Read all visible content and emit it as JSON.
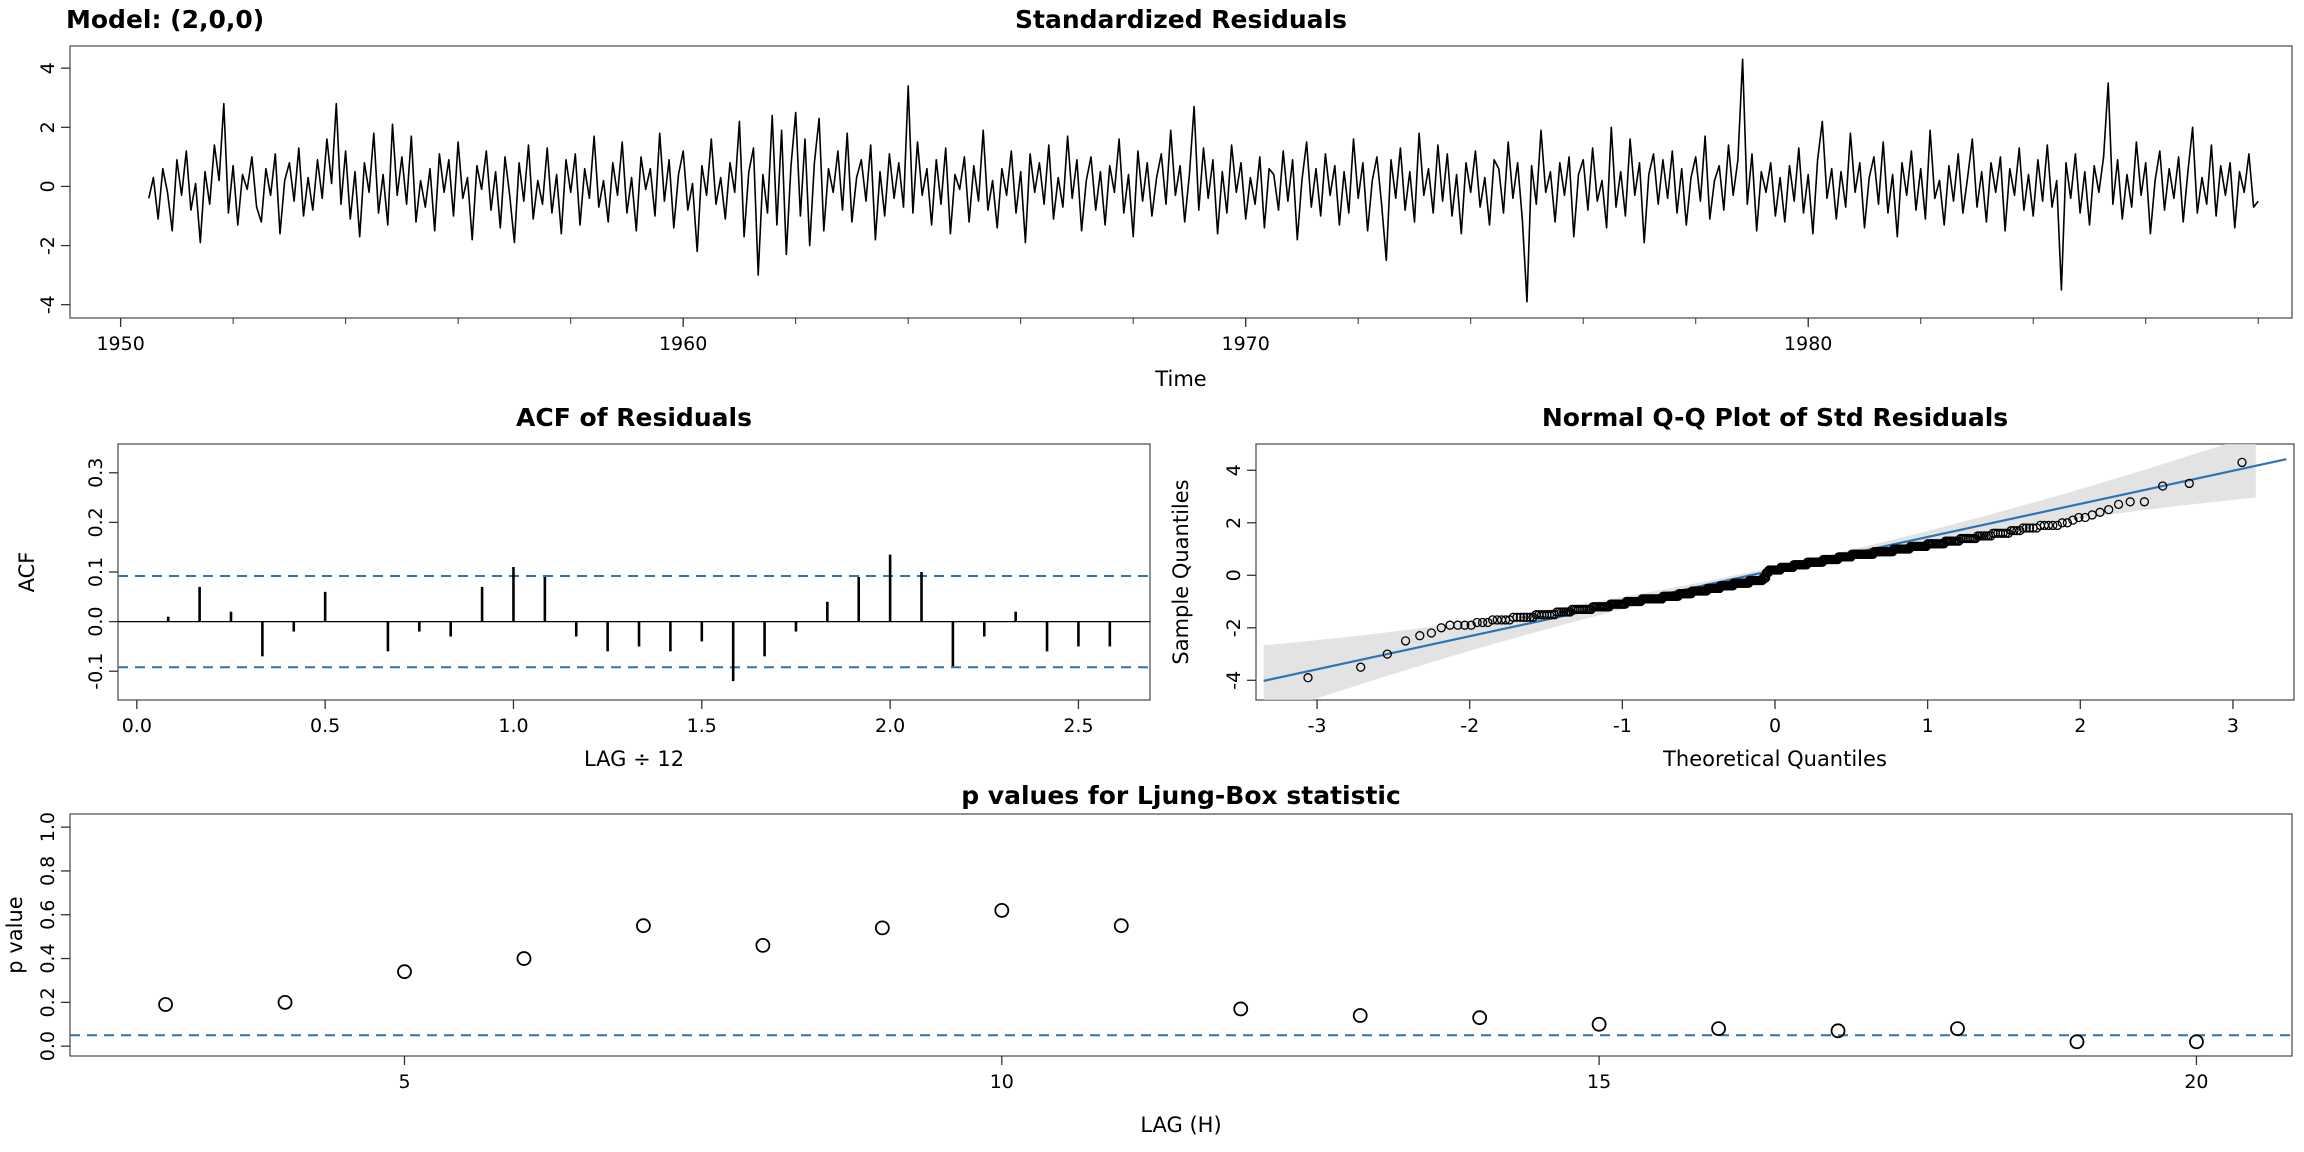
{
  "figure": {
    "bg": "#ffffff",
    "accent_blue": "#2e74b5",
    "band_gray": "#d9d9d9",
    "frame_gray": "#555555"
  },
  "panels": {
    "residuals": {
      "title": "Standardized Residuals",
      "model_label": "Model: (2,0,0)",
      "xlabel": "Time",
      "xlim": [
        1949.1,
        1988.6
      ],
      "ylim": [
        -4.45,
        4.75
      ],
      "x_ticks": [
        1950,
        1960,
        1970,
        1980
      ],
      "x_tick_labels": [
        "1950",
        "1960",
        "1970",
        "1980"
      ],
      "x_minor": [
        1950,
        1988,
        2
      ],
      "y_ticks": [
        -4,
        -2,
        0,
        2,
        4
      ],
      "y_tick_labels": [
        "-4",
        "-2",
        "0",
        "2",
        "4"
      ]
    },
    "acf": {
      "title": "ACF of Residuals",
      "xlabel": "LAG ÷ 12",
      "ylabel": "ACF",
      "xlim": [
        -0.05,
        2.69
      ],
      "ylim": [
        -0.158,
        0.358
      ],
      "x_ticks": [
        0,
        0.5,
        1,
        1.5,
        2,
        2.5
      ],
      "x_tick_labels": [
        "0.0",
        "0.5",
        "1.0",
        "1.5",
        "2.0",
        "2.5"
      ],
      "y_ticks": [
        -0.1,
        0,
        0.1,
        0.2,
        0.3
      ],
      "y_tick_labels": [
        "-0.1",
        "0.0",
        "0.1",
        "0.2",
        "0.3"
      ]
    },
    "qq": {
      "title": "Normal Q-Q Plot of Std Residuals",
      "xlabel": "Theoretical Quantiles",
      "ylabel": "Sample Quantiles",
      "xlim": [
        -3.4,
        3.4
      ],
      "ylim": [
        -4.75,
        5.0
      ],
      "x_ticks": [
        -3,
        -2,
        -1,
        0,
        1,
        2,
        3
      ],
      "x_tick_labels": [
        "-3",
        "-2",
        "-1",
        "0",
        "1",
        "2",
        "3"
      ],
      "y_ticks": [
        -4,
        -2,
        0,
        2,
        4
      ],
      "y_tick_labels": [
        "-4",
        "-2",
        "0",
        "2",
        "4"
      ]
    },
    "ljung_box": {
      "title": "p values for Ljung-Box statistic",
      "xlabel": "LAG (H)",
      "ylabel": "p value",
      "xlim": [
        2.2,
        20.8
      ],
      "ylim": [
        -0.045,
        1.06
      ],
      "x_ticks": [
        5,
        10,
        15,
        20
      ],
      "x_tick_labels": [
        "5",
        "10",
        "15",
        "20"
      ],
      "y_ticks": [
        0,
        0.2,
        0.4,
        0.6,
        0.8,
        1
      ],
      "y_tick_labels": [
        "0.0",
        "0.2",
        "0.4",
        "0.6",
        "0.8",
        "1.0"
      ]
    }
  },
  "chart_data": [
    {
      "id": "standardized_residuals",
      "type": "line",
      "title": "Standardized Residuals",
      "xlabel": "Time",
      "x_start": 1950.5,
      "x_step_years": 0.0833333,
      "xlim": [
        1949.1,
        1988.6
      ],
      "ylim": [
        -4.45,
        4.75
      ],
      "notable_extremes": {
        "max": [
          1978.83,
          4.3
        ],
        "min": [
          1975.0,
          -3.9
        ]
      },
      "values": [
        -0.4,
        0.3,
        -1.1,
        0.6,
        -0.2,
        -1.5,
        0.9,
        -0.3,
        1.2,
        -0.8,
        0.1,
        -1.9,
        0.5,
        -0.6,
        1.4,
        0.2,
        2.8,
        -0.9,
        0.7,
        -1.3,
        0.4,
        -0.1,
        1.0,
        -0.7,
        -1.2,
        0.6,
        -0.3,
        1.1,
        -1.6,
        0.2,
        0.8,
        -0.5,
        1.3,
        -1.0,
        0.3,
        -0.8,
        0.9,
        -0.4,
        1.6,
        0.1,
        2.8,
        -0.6,
        1.2,
        -1.1,
        0.5,
        -1.7,
        0.8,
        -0.2,
        1.8,
        -0.9,
        0.4,
        -1.3,
        2.1,
        -0.3,
        1.0,
        -0.6,
        1.7,
        -1.2,
        0.2,
        -0.7,
        0.6,
        -1.5,
        1.1,
        -0.2,
        0.9,
        -1.0,
        1.5,
        -0.4,
        0.3,
        -1.8,
        0.7,
        -0.1,
        1.2,
        -0.8,
        0.5,
        -1.4,
        1.0,
        -0.3,
        -1.9,
        0.8,
        -0.5,
        1.4,
        -1.1,
        0.2,
        -0.6,
        1.3,
        -0.9,
        0.4,
        -1.6,
        0.9,
        -0.2,
        1.1,
        -1.3,
        0.6,
        -0.4,
        1.7,
        -0.7,
        0.2,
        -1.2,
        0.8,
        -0.3,
        1.5,
        -0.9,
        0.3,
        -1.5,
        1.0,
        -0.1,
        0.6,
        -1.0,
        1.8,
        -0.5,
        0.9,
        -1.4,
        0.4,
        1.2,
        -0.8,
        0.1,
        -2.2,
        0.7,
        -0.3,
        1.6,
        -0.6,
        0.3,
        -1.1,
        0.8,
        -0.2,
        2.2,
        -1.7,
        0.5,
        1.3,
        -3.0,
        0.4,
        -0.9,
        2.4,
        -1.3,
        1.9,
        -2.3,
        0.7,
        2.5,
        -1.0,
        1.6,
        -2.0,
        0.8,
        2.3,
        -1.5,
        0.6,
        -0.2,
        1.2,
        -0.8,
        1.8,
        -1.2,
        0.3,
        0.9,
        -0.5,
        1.4,
        -1.8,
        0.5,
        -1.0,
        1.1,
        -0.4,
        0.8,
        -0.7,
        3.4,
        -0.9,
        1.5,
        -0.3,
        0.6,
        -1.3,
        0.9,
        -0.6,
        1.3,
        -1.6,
        0.4,
        -0.1,
        1.0,
        -1.2,
        0.7,
        -0.5,
        1.9,
        -0.8,
        0.2,
        -1.4,
        0.6,
        -0.3,
        1.2,
        -0.9,
        0.5,
        -1.9,
        1.1,
        -0.2,
        0.8,
        -0.6,
        1.4,
        -1.1,
        0.3,
        -0.7,
        1.7,
        -0.4,
        0.9,
        -1.5,
        0.2,
        1.0,
        -0.8,
        0.5,
        -1.3,
        0.7,
        -0.2,
        1.6,
        -0.9,
        0.4,
        -1.7,
        1.2,
        -0.5,
        0.8,
        -1.0,
        0.3,
        1.1,
        -0.6,
        1.9,
        -0.3,
        0.7,
        -1.2,
        0.4,
        2.7,
        -0.8,
        1.3,
        -0.4,
        0.9,
        -1.6,
        0.5,
        -0.9,
        1.4,
        -0.2,
        0.8,
        -1.1,
        0.3,
        -0.6,
        1.0,
        -1.4,
        0.6,
        0.4,
        -0.8,
        1.2,
        -0.5,
        0.9,
        -1.8,
        0.2,
        1.5,
        -0.7,
        0.6,
        -1.0,
        1.1,
        -0.3,
        0.7,
        -1.3,
        0.5,
        -0.9,
        1.6,
        -0.4,
        0.8,
        -1.5,
        0.2,
        1.0,
        -0.6,
        -2.5,
        0.9,
        -0.4,
        1.3,
        -0.8,
        0.5,
        -1.2,
        1.8,
        -0.3,
        0.6,
        -0.9,
        1.4,
        -0.5,
        1.1,
        -1.0,
        0.4,
        -1.6,
        0.8,
        -0.2,
        1.2,
        -0.7,
        0.3,
        -1.3,
        0.9,
        0.6,
        -0.9,
        1.5,
        -0.4,
        0.8,
        -1.1,
        -3.9,
        0.7,
        -0.6,
        1.9,
        -0.2,
        0.5,
        -1.2,
        0.8,
        -0.3,
        1.0,
        -1.7,
        0.4,
        0.9,
        -0.8,
        1.3,
        -0.5,
        0.2,
        -1.4,
        2.0,
        -0.7,
        0.5,
        -1.0,
        1.6,
        -0.3,
        0.8,
        -1.9,
        0.4,
        1.1,
        -0.6,
        0.9,
        -0.4,
        1.2,
        -0.9,
        0.6,
        -1.3,
        0.3,
        1.0,
        -0.5,
        1.7,
        -1.1,
        0.2,
        0.7,
        -0.8,
        1.4,
        -0.3,
        0.9,
        4.3,
        -0.6,
        1.1,
        -1.5,
        0.5,
        -0.2,
        0.8,
        -1.0,
        0.3,
        -1.2,
        0.7,
        -0.5,
        1.3,
        -0.9,
        0.4,
        -1.6,
        0.9,
        2.2,
        -0.4,
        0.6,
        -1.1,
        0.5,
        -0.7,
        1.8,
        -0.2,
        0.8,
        -1.4,
        0.3,
        1.0,
        -0.6,
        1.5,
        -0.9,
        0.4,
        -1.7,
        0.8,
        -0.3,
        1.2,
        -0.8,
        0.6,
        -1.1,
        1.9,
        -0.4,
        0.2,
        -1.3,
        0.7,
        -0.5,
        1.1,
        -0.9,
        0.3,
        1.6,
        -0.7,
        0.5,
        -1.2,
        0.8,
        -0.2,
        1.0,
        -1.5,
        0.6,
        -0.3,
        1.3,
        -0.8,
        0.4,
        -1.0,
        0.9,
        -0.5,
        1.4,
        -0.7,
        0.2,
        -3.5,
        0.8,
        -0.4,
        1.1,
        -0.9,
        0.5,
        -1.3,
        0.7,
        -0.2,
        1.0,
        3.5,
        -0.6,
        0.9,
        -1.1,
        0.4,
        -0.7,
        1.5,
        -0.3,
        0.8,
        -1.6,
        0.2,
        1.2,
        -0.8,
        0.6,
        -0.4,
        1.0,
        -1.2,
        0.5,
        2.0,
        -0.9,
        0.3,
        -0.6,
        1.4,
        -1.0,
        0.7,
        -0.3,
        0.8,
        -1.4,
        0.5,
        -0.2,
        1.1,
        -0.7,
        -0.5
      ]
    },
    {
      "id": "acf_of_residuals",
      "type": "bar",
      "title": "ACF of Residuals",
      "xlabel": "LAG ÷ 12",
      "ylabel": "ACF",
      "lag_divisor": 12,
      "conf_bound": 0.092,
      "conf_style": "dashed-blue",
      "lags": [
        1,
        2,
        3,
        4,
        5,
        6,
        7,
        8,
        9,
        10,
        11,
        12,
        13,
        14,
        15,
        16,
        17,
        18,
        19,
        20,
        21,
        22,
        23,
        24,
        25,
        26,
        27,
        28,
        29,
        30,
        31
      ],
      "values": [
        0.01,
        0.07,
        0.02,
        -0.07,
        -0.02,
        0.06,
        0.0,
        -0.06,
        -0.02,
        -0.03,
        0.07,
        0.11,
        0.09,
        -0.03,
        -0.06,
        -0.05,
        -0.06,
        -0.04,
        -0.12,
        -0.07,
        -0.02,
        0.04,
        0.09,
        0.135,
        0.1,
        -0.09,
        -0.03,
        0.02,
        -0.06,
        -0.05,
        -0.05
      ]
    },
    {
      "id": "normal_qq",
      "type": "scatter",
      "title": "Normal Q-Q Plot of Std Residuals",
      "xlabel": "Theoretical Quantiles",
      "ylabel": "Sample Quantiles",
      "points": "sorted standardized residuals (chart_data[0].values) vs standard normal quantiles",
      "reference_line": "blue line through data quartiles",
      "band": {
        "base": 0.12,
        "quad": 0.11
      },
      "xlim": [
        -3.4,
        3.4
      ],
      "ylim": [
        -4.75,
        5.0
      ]
    },
    {
      "id": "ljung_box_pvalues",
      "type": "scatter",
      "title": "p values for Ljung-Box statistic",
      "xlabel": "LAG (H)",
      "ylabel": "p value",
      "threshold": 0.05,
      "lags": [
        3,
        4,
        5,
        6,
        7,
        8,
        9,
        10,
        11,
        12,
        13,
        14,
        15,
        16,
        17,
        18,
        19,
        20
      ],
      "values": [
        0.19,
        0.2,
        0.34,
        0.4,
        0.55,
        0.46,
        0.54,
        0.62,
        0.55,
        0.17,
        0.14,
        0.13,
        0.1,
        0.08,
        0.07,
        0.08,
        0.02,
        0.02
      ]
    }
  ]
}
